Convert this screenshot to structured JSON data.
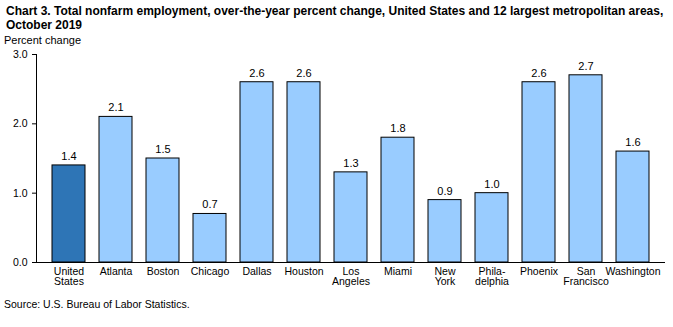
{
  "chart_data": {
    "type": "bar",
    "title": "Chart 3. Total nonfarm employment, over-the-year percent change, United  States and 12 largest metropolitan areas, October 2019",
    "y_label": "Percent change",
    "source": "Source: U.S. Bureau of Labor Statistics.",
    "categories": [
      "United\nStates",
      "Atlanta",
      "Boston",
      "Chicago",
      "Dallas",
      "Houston",
      "Los\nAngeles",
      "Miami",
      "New\nYork",
      "Phila-\ndelphia",
      "Phoenix",
      "San\nFrancisco",
      "Washington"
    ],
    "values": [
      1.4,
      2.1,
      1.5,
      0.7,
      2.6,
      2.6,
      1.3,
      1.8,
      0.9,
      1.0,
      2.6,
      2.7,
      1.6
    ],
    "value_labels": [
      "1.4",
      "2.1",
      "1.5",
      "0.7",
      "2.6",
      "2.6",
      "1.3",
      "1.8",
      "0.9",
      "1.0",
      "2.6",
      "2.7",
      "1.6"
    ],
    "data_labels": true,
    "colors": [
      "#2e75b6",
      "#99ccff",
      "#99ccff",
      "#99ccff",
      "#99ccff",
      "#99ccff",
      "#99ccff",
      "#99ccff",
      "#99ccff",
      "#99ccff",
      "#99ccff",
      "#99ccff",
      "#99ccff"
    ],
    "ylim": [
      0,
      3
    ],
    "yticks": [
      {
        "value": 0,
        "label": "0.0"
      },
      {
        "value": 1,
        "label": "1.0"
      },
      {
        "value": 2,
        "label": "2.0"
      },
      {
        "value": 3,
        "label": "3.0"
      }
    ],
    "grid": false
  }
}
